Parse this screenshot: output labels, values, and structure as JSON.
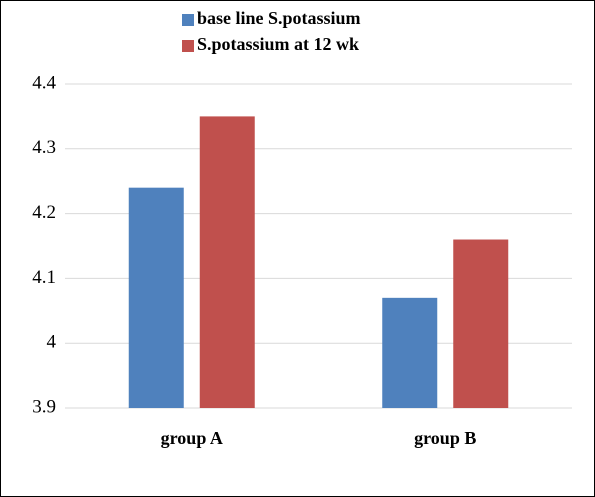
{
  "chart_data": {
    "type": "bar",
    "categories": [
      "group A",
      "group B"
    ],
    "series": [
      {
        "name": "base line S.potassium",
        "color": "#4f81bd",
        "values": [
          4.24,
          4.07
        ]
      },
      {
        "name": "S.potassium at 12 wk",
        "color": "#c0504d",
        "values": [
          4.35,
          4.16
        ]
      }
    ],
    "ylim": [
      3.9,
      4.4
    ],
    "yticks": [
      3.9,
      4,
      4.1,
      4.2,
      4.3,
      4.4
    ],
    "grid": true,
    "legend": "top"
  }
}
